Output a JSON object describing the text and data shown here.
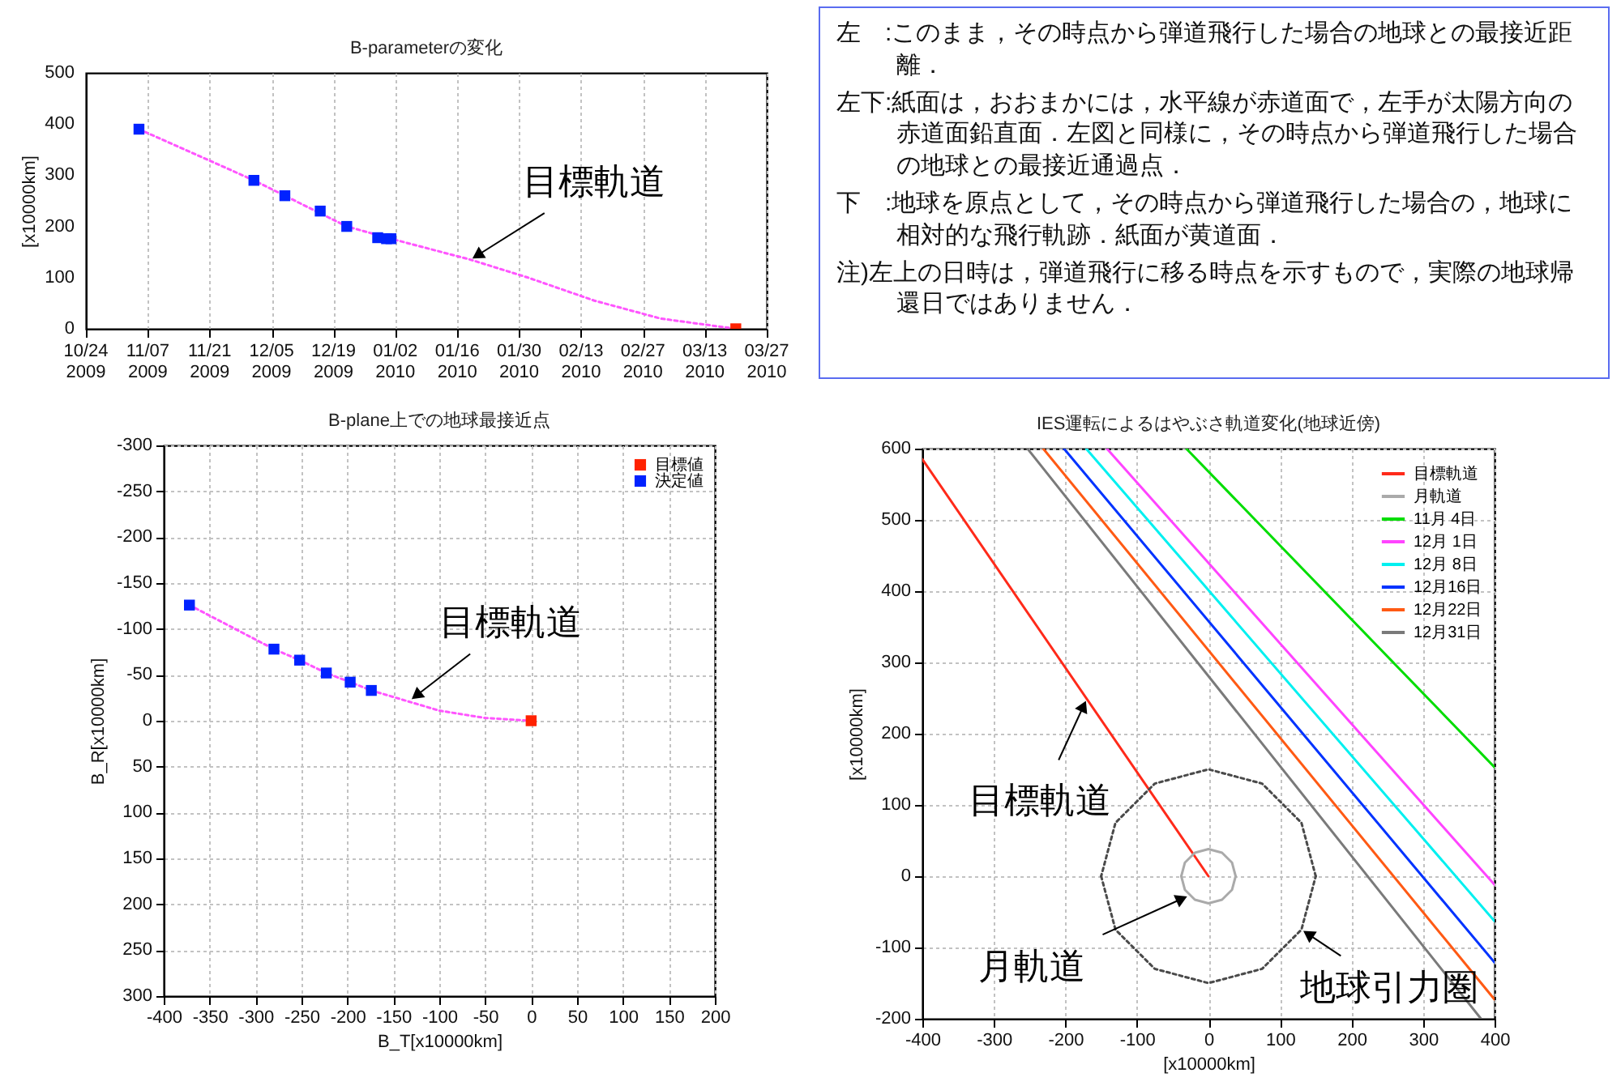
{
  "chart_data": [
    {
      "type": "scatter",
      "title": "B-parameterの変化",
      "ylabel": "[x10000km]",
      "xlim": [
        "2009-10-24",
        "2010-03-27"
      ],
      "xticks": [
        {
          "value": "2009-10-24",
          "label": "10/24 2009"
        },
        {
          "value": "2009-11-07",
          "label": "11/07 2009"
        },
        {
          "value": "2009-11-21",
          "label": "11/21 2009"
        },
        {
          "value": "2009-12-05",
          "label": "12/05 2009"
        },
        {
          "value": "2009-12-19",
          "label": "12/19 2009"
        },
        {
          "value": "2010-01-02",
          "label": "01/02 2010"
        },
        {
          "value": "2010-01-16",
          "label": "01/16 2010"
        },
        {
          "value": "2010-01-30",
          "label": "01/30 2010"
        },
        {
          "value": "2010-02-13",
          "label": "02/13 2010"
        },
        {
          "value": "2010-02-27",
          "label": "02/27 2010"
        },
        {
          "value": "2010-03-13",
          "label": "03/13 2010"
        },
        {
          "value": "2010-03-27",
          "label": "03/27 2010"
        }
      ],
      "ylim": [
        0,
        500
      ],
      "yticks": [
        0,
        100,
        200,
        300,
        400,
        500
      ],
      "grid": true,
      "marker": "square",
      "line_style": "dotted",
      "series": [
        {
          "type": "line",
          "marker": "none",
          "color": "#ff55ff",
          "x": [
            "2009-11-05",
            "2009-12-01",
            "2009-12-22",
            "2010-01-01",
            "2010-01-19",
            "2010-02-01",
            "2010-02-16",
            "2010-03-03",
            "2010-03-20"
          ],
          "values": [
            390,
            290,
            200,
            176,
            135,
            100,
            55,
            20,
            0
          ]
        },
        {
          "color": "#0022ff",
          "x": [
            "2009-11-05",
            "2009-12-01",
            "2009-12-08",
            "2009-12-16",
            "2009-12-22",
            "2009-12-29",
            "2009-12-31",
            "2010-01-01"
          ],
          "values": [
            390,
            290,
            260,
            230,
            200,
            178,
            176,
            176
          ]
        },
        {
          "color": "#ff2200",
          "x": [
            "2010-03-20"
          ],
          "values": [
            0
          ]
        }
      ],
      "annotations": [
        {
          "text": "目標軌道",
          "x": "2010-01-19",
          "y": 135
        }
      ]
    },
    {
      "type": "other",
      "annotations": [
        "左　:このまま，その時点から弾道飛行した場合の地球との最接近距離．",
        "左下:紙面は，おおまかには，水平線が赤道面で，左手が太陽方向の赤道面鉛直面．左図と同様に，その時点から弾道飛行した場合の地球との最接近通過点．",
        "下　:地球を原点として，その時点から弾道飛行した場合の，地球に相対的な飛行軌跡．紙面が黄道面．",
        "注)左上の日時は，弾道飛行に移る時点を示すもので，実際の地球帰還日ではありません．"
      ]
    },
    {
      "type": "scatter",
      "title": "B-plane上での地球最接近点",
      "xlabel": "B_T[x10000km]",
      "ylabel": "B_R[x10000km]",
      "xlim": [
        -400,
        200
      ],
      "xticks": [
        -400,
        -350,
        -300,
        -250,
        -200,
        -150,
        -100,
        -50,
        0,
        50,
        100,
        150,
        200
      ],
      "ylim": [
        300,
        -300
      ],
      "yticks": [
        -300,
        -250,
        -200,
        -150,
        -100,
        -50,
        0,
        50,
        100,
        150,
        200,
        250,
        300
      ],
      "grid": true,
      "marker": "square",
      "line_style": "dotted",
      "legend": "top right",
      "series": [
        {
          "type": "line",
          "marker": "none",
          "color": "#ff55ff",
          "x": [
            -372,
            -280,
            -252,
            -223,
            -197,
            -174,
            -100,
            -50,
            0
          ],
          "values": [
            -126,
            -78,
            -66,
            -52,
            -42,
            -33,
            -11,
            -3,
            0
          ]
        },
        {
          "name": "目標値",
          "color": "#ff2200",
          "x": [
            0
          ],
          "values": [
            0
          ]
        },
        {
          "name": "決定値",
          "color": "#0022ff",
          "x": [
            -372,
            -280,
            -252,
            -223,
            -197,
            -174
          ],
          "values": [
            -126,
            -78,
            -66,
            -52,
            -42,
            -33
          ]
        }
      ],
      "annotations": [
        {
          "text": "目標軌道",
          "x": -132,
          "y": -22
        }
      ]
    },
    {
      "type": "line",
      "title": "IES運転によるはやぶさ軌道変化(地球近傍)",
      "xlabel": "[x10000km]",
      "ylabel": "[x10000km]",
      "xlim": [
        -400,
        400
      ],
      "xticks": [
        -400,
        -300,
        -200,
        -100,
        0,
        100,
        200,
        300,
        400
      ],
      "ylim": [
        -200,
        600
      ],
      "yticks": [
        -200,
        -100,
        0,
        100,
        200,
        300,
        400,
        500,
        600
      ],
      "grid": true,
      "legend": "top right",
      "series": [
        {
          "name": "目標軌道",
          "color": "#ff2a1a",
          "x": [
            -400,
            0
          ],
          "values": [
            585,
            0
          ]
        },
        {
          "name": "月軌道",
          "color": "#aaaaaa",
          "x": [
            38,
            33,
            19,
            0,
            -19,
            -33,
            -38
          ],
          "values": [
            0,
            19,
            33,
            38,
            33,
            19,
            0
          ]
        },
        {
          "name": "11月 4日",
          "color": "#00dd00",
          "x": [
            -31,
            400
          ],
          "values": [
            600,
            153
          ]
        },
        {
          "name": "12月 1日",
          "color": "#ff44ff",
          "x": [
            -142,
            400
          ],
          "values": [
            600,
            -12
          ]
        },
        {
          "name": "12月 8日",
          "color": "#00f0f0",
          "x": [
            -171,
            400
          ],
          "values": [
            600,
            -63
          ]
        },
        {
          "name": "12月16日",
          "color": "#0033ff",
          "x": [
            -202,
            400
          ],
          "values": [
            600,
            -121
          ]
        },
        {
          "name": "12月22日",
          "color": "#ff5a14",
          "x": [
            -231,
            400
          ],
          "values": [
            600,
            -173
          ]
        },
        {
          "name": "12月31日",
          "color": "#7a7a7a",
          "x": [
            -253,
            381
          ],
          "values": [
            600,
            -200
          ]
        },
        {
          "color": "#4a4a4a",
          "line_style": "dotted",
          "x": [
            150,
            130,
            75,
            0,
            -75,
            -130,
            -150
          ],
          "values": [
            0,
            75,
            130,
            150,
            130,
            75,
            0
          ]
        },
        {
          "color": "#4a4a4a",
          "line_style": "dotted",
          "x": [
            -150,
            -130,
            -75,
            0,
            75,
            130,
            150
          ],
          "values": [
            0,
            -75,
            -130,
            -150,
            -130,
            -75,
            0
          ]
        },
        {
          "color": "#aaaaaa",
          "x": [
            -38,
            -33,
            -19,
            0,
            19,
            33,
            38
          ],
          "values": [
            0,
            -19,
            -33,
            -38,
            -33,
            -19,
            0
          ]
        }
      ],
      "annotations": [
        {
          "text": "目標軌道",
          "x": -170,
          "y": 249
        },
        {
          "text": "月軌道",
          "x": -27,
          "y": -27
        },
        {
          "text": "地球引力圏",
          "x": 130,
          "y": -75
        }
      ]
    }
  ]
}
